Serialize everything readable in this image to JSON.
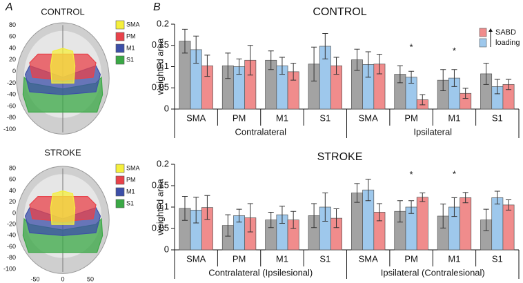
{
  "panel_labels": [
    "A",
    "B"
  ],
  "brain_maps": [
    {
      "title": "CONTROL",
      "legend": [
        {
          "name": "SMA",
          "color": "#f5ef3c"
        },
        {
          "name": "PM",
          "color": "#e8424a"
        },
        {
          "name": "M1",
          "color": "#3c4fa8"
        },
        {
          "name": "S1",
          "color": "#3aa845"
        }
      ],
      "ylim": [
        -110,
        90
      ],
      "yticks": [
        80,
        60,
        40,
        20,
        0,
        -20,
        -40,
        -60,
        -80,
        -100
      ],
      "xlim": [
        -100,
        100
      ],
      "xticks": []
    },
    {
      "title": "STROKE",
      "legend": [
        {
          "name": "SMA",
          "color": "#f5ef3c"
        },
        {
          "name": "PM",
          "color": "#e8424a"
        },
        {
          "name": "M1",
          "color": "#3c4fa8"
        },
        {
          "name": "S1",
          "color": "#3aa845"
        }
      ],
      "ylim": [
        -110,
        90
      ],
      "yticks": [
        80,
        60,
        40,
        20,
        0,
        -20,
        -40,
        -60,
        -80,
        -100
      ],
      "xlim": [
        -100,
        100
      ],
      "xticks": [
        -50,
        0,
        50
      ]
    }
  ],
  "chart_data": [
    {
      "type": "bar",
      "title": "CONTROL",
      "y_label": "weighted area",
      "categories": [
        "SMA",
        "PM",
        "M1",
        "S1",
        "SMA",
        "PM",
        "M1",
        "S1"
      ],
      "groups": [
        "Contralateral",
        "Ipsilateral"
      ],
      "ylim": [
        0,
        0.2
      ],
      "yticks": [
        0,
        0.05,
        0.1,
        0.15,
        0.2
      ],
      "annotations": [
        null,
        null,
        null,
        null,
        null,
        "*",
        "*",
        null
      ],
      "series": [
        {
          "color": "#a3a3a3",
          "values": [
            0.16,
            0.102,
            0.115,
            0.106,
            0.116,
            0.082,
            0.068,
            0.083
          ],
          "errors": [
            0.028,
            0.03,
            0.022,
            0.04,
            0.025,
            0.02,
            0.025,
            0.025
          ]
        },
        {
          "name": "loading",
          "color": "#9ec8ec",
          "values": [
            0.14,
            0.1,
            0.102,
            0.148,
            0.105,
            0.075,
            0.073,
            0.053
          ],
          "errors": [
            0.032,
            0.018,
            0.02,
            0.03,
            0.03,
            0.014,
            0.02,
            0.017
          ]
        },
        {
          "name": "SABD",
          "color": "#f08c8c",
          "values": [
            0.102,
            0.115,
            0.088,
            0.102,
            0.106,
            0.022,
            0.037,
            0.058
          ],
          "errors": [
            0.025,
            0.035,
            0.02,
            0.02,
            0.023,
            0.012,
            0.012,
            0.012
          ]
        }
      ]
    },
    {
      "type": "bar",
      "title": "STROKE",
      "y_label": "weighted area",
      "categories": [
        "SMA",
        "PM",
        "M1",
        "S1",
        "SMA",
        "PM",
        "M1",
        "S1"
      ],
      "groups": [
        "Contralateral (Ipsilesional)",
        "Ipsilateral (Contralesional)"
      ],
      "ylim": [
        0,
        0.2
      ],
      "yticks": [
        0,
        0.05,
        0.1,
        0.15,
        0.2
      ],
      "annotations": [
        null,
        null,
        null,
        null,
        null,
        "*",
        "*",
        null
      ],
      "series": [
        {
          "color": "#a3a3a3",
          "values": [
            0.097,
            0.057,
            0.07,
            0.08,
            0.133,
            0.09,
            0.079,
            0.07
          ],
          "errors": [
            0.028,
            0.025,
            0.018,
            0.028,
            0.022,
            0.025,
            0.028,
            0.025
          ]
        },
        {
          "color": "#9ec8ec",
          "values": [
            0.093,
            0.08,
            0.082,
            0.1,
            0.14,
            0.1,
            0.1,
            0.122
          ],
          "errors": [
            0.03,
            0.015,
            0.02,
            0.033,
            0.025,
            0.015,
            0.022,
            0.015
          ]
        },
        {
          "color": "#f08c8c",
          "values": [
            0.099,
            0.075,
            0.07,
            0.074,
            0.088,
            0.123,
            0.122,
            0.105
          ],
          "errors": [
            0.028,
            0.033,
            0.02,
            0.022,
            0.02,
            0.01,
            0.012,
            0.012
          ]
        }
      ]
    }
  ]
}
